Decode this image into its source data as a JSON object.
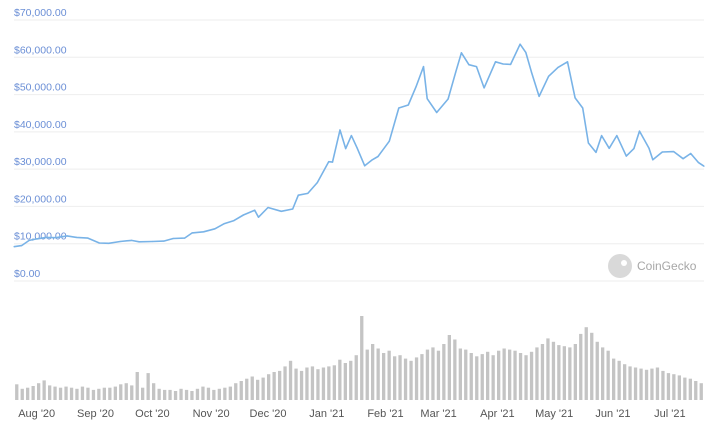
{
  "chart_data": {
    "type": "line",
    "y_tick_labels": [
      "$0.00",
      "$10,000.00",
      "$20,000.00",
      "$30,000.00",
      "$40,000.00",
      "$50,000.00",
      "$60,000.00",
      "$70,000.00"
    ],
    "y_tick_values": [
      0,
      10000,
      20000,
      30000,
      40000,
      50000,
      60000,
      70000
    ],
    "ylim": [
      0,
      70000
    ],
    "x_tick_labels": [
      "Aug '20",
      "Sep '20",
      "Oct '20",
      "Nov '20",
      "Dec '20",
      "Jan '21",
      "Feb '21",
      "Mar '21",
      "Apr '21",
      "May '21",
      "Jun '21",
      "Jul '21"
    ],
    "x_tick_dates": [
      "2020-08-01",
      "2020-09-01",
      "2020-10-01",
      "2020-11-01",
      "2020-12-01",
      "2021-01-01",
      "2021-02-01",
      "2021-03-01",
      "2021-04-01",
      "2021-05-01",
      "2021-06-01",
      "2021-07-01"
    ],
    "xlim": [
      "2020-07-20",
      "2021-07-19"
    ],
    "grid": true,
    "colors": {
      "price_line": "#79b3e7",
      "volume_bars": "#c4c4c4",
      "y_tick_text": "#6b8fd6"
    },
    "series": [
      {
        "points": [
          [
            "2020-07-20",
            9200
          ],
          [
            "2020-07-24",
            9500
          ],
          [
            "2020-07-28",
            10900
          ],
          [
            "2020-08-01",
            11300
          ],
          [
            "2020-08-06",
            11700
          ],
          [
            "2020-08-11",
            11600
          ],
          [
            "2020-08-17",
            12100
          ],
          [
            "2020-08-22",
            11700
          ],
          [
            "2020-08-28",
            11500
          ],
          [
            "2020-09-03",
            10200
          ],
          [
            "2020-09-08",
            10100
          ],
          [
            "2020-09-14",
            10600
          ],
          [
            "2020-09-20",
            10900
          ],
          [
            "2020-09-24",
            10500
          ],
          [
            "2020-10-01",
            10600
          ],
          [
            "2020-10-07",
            10700
          ],
          [
            "2020-10-12",
            11400
          ],
          [
            "2020-10-18",
            11500
          ],
          [
            "2020-10-22",
            12900
          ],
          [
            "2020-10-28",
            13200
          ],
          [
            "2020-11-03",
            14000
          ],
          [
            "2020-11-08",
            15400
          ],
          [
            "2020-11-13",
            16200
          ],
          [
            "2020-11-18",
            17700
          ],
          [
            "2020-11-24",
            19000
          ],
          [
            "2020-11-26",
            17100
          ],
          [
            "2020-12-01",
            19700
          ],
          [
            "2020-12-08",
            18700
          ],
          [
            "2020-12-14",
            19300
          ],
          [
            "2020-12-17",
            23000
          ],
          [
            "2020-12-22",
            23500
          ],
          [
            "2020-12-27",
            26400
          ],
          [
            "2021-01-02",
            32000
          ],
          [
            "2021-01-04",
            31900
          ],
          [
            "2021-01-08",
            40500
          ],
          [
            "2021-01-11",
            35500
          ],
          [
            "2021-01-14",
            39000
          ],
          [
            "2021-01-17",
            35700
          ],
          [
            "2021-01-21",
            30900
          ],
          [
            "2021-01-25",
            32500
          ],
          [
            "2021-01-28",
            33400
          ],
          [
            "2021-02-03",
            37500
          ],
          [
            "2021-02-08",
            46400
          ],
          [
            "2021-02-13",
            47200
          ],
          [
            "2021-02-17",
            52000
          ],
          [
            "2021-02-21",
            57500
          ],
          [
            "2021-02-23",
            48900
          ],
          [
            "2021-02-28",
            45200
          ],
          [
            "2021-03-06",
            48800
          ],
          [
            "2021-03-10",
            56000
          ],
          [
            "2021-03-13",
            61200
          ],
          [
            "2021-03-17",
            58000
          ],
          [
            "2021-03-21",
            57500
          ],
          [
            "2021-03-25",
            51800
          ],
          [
            "2021-03-31",
            58800
          ],
          [
            "2021-04-04",
            58200
          ],
          [
            "2021-04-08",
            58100
          ],
          [
            "2021-04-13",
            63500
          ],
          [
            "2021-04-16",
            61300
          ],
          [
            "2021-04-19",
            56000
          ],
          [
            "2021-04-23",
            49500
          ],
          [
            "2021-04-28",
            54900
          ],
          [
            "2021-05-03",
            57300
          ],
          [
            "2021-05-08",
            58800
          ],
          [
            "2021-05-12",
            49100
          ],
          [
            "2021-05-16",
            46400
          ],
          [
            "2021-05-19",
            37000
          ],
          [
            "2021-05-23",
            34500
          ],
          [
            "2021-05-26",
            39000
          ],
          [
            "2021-05-30",
            35600
          ],
          [
            "2021-06-03",
            39000
          ],
          [
            "2021-06-08",
            33500
          ],
          [
            "2021-06-12",
            35500
          ],
          [
            "2021-06-15",
            40200
          ],
          [
            "2021-06-20",
            35600
          ],
          [
            "2021-06-22",
            32500
          ],
          [
            "2021-06-27",
            34600
          ],
          [
            "2021-07-03",
            34700
          ],
          [
            "2021-07-08",
            32800
          ],
          [
            "2021-07-12",
            34200
          ],
          [
            "2021-07-16",
            31800
          ],
          [
            "2021-07-19",
            30800
          ]
        ]
      }
    ],
    "volume": {
      "color": "#c4c4c4",
      "values": [
        28,
        20,
        22,
        25,
        30,
        35,
        26,
        24,
        22,
        24,
        22,
        20,
        24,
        22,
        18,
        20,
        22,
        22,
        24,
        28,
        30,
        26,
        50,
        22,
        48,
        30,
        20,
        18,
        18,
        16,
        20,
        18,
        16,
        20,
        24,
        22,
        18,
        20,
        22,
        24,
        30,
        34,
        38,
        42,
        36,
        40,
        46,
        50,
        52,
        60,
        70,
        56,
        52,
        58,
        60,
        55,
        58,
        60,
        62,
        72,
        66,
        70,
        80,
        150,
        90,
        100,
        92,
        84,
        88,
        78,
        80,
        74,
        70,
        76,
        82,
        90,
        94,
        88,
        100,
        116,
        108,
        92,
        90,
        84,
        78,
        82,
        86,
        80,
        88,
        92,
        90,
        88,
        84,
        80,
        86,
        94,
        100,
        110,
        104,
        98,
        96,
        94,
        100,
        118,
        130,
        120,
        104,
        94,
        88,
        74,
        70,
        64,
        60,
        58,
        56,
        54,
        56,
        58,
        52,
        48,
        46,
        44,
        40,
        38,
        34,
        30
      ]
    }
  },
  "watermark": {
    "text": "CoinGecko",
    "icon": "gecko-logo-icon"
  }
}
